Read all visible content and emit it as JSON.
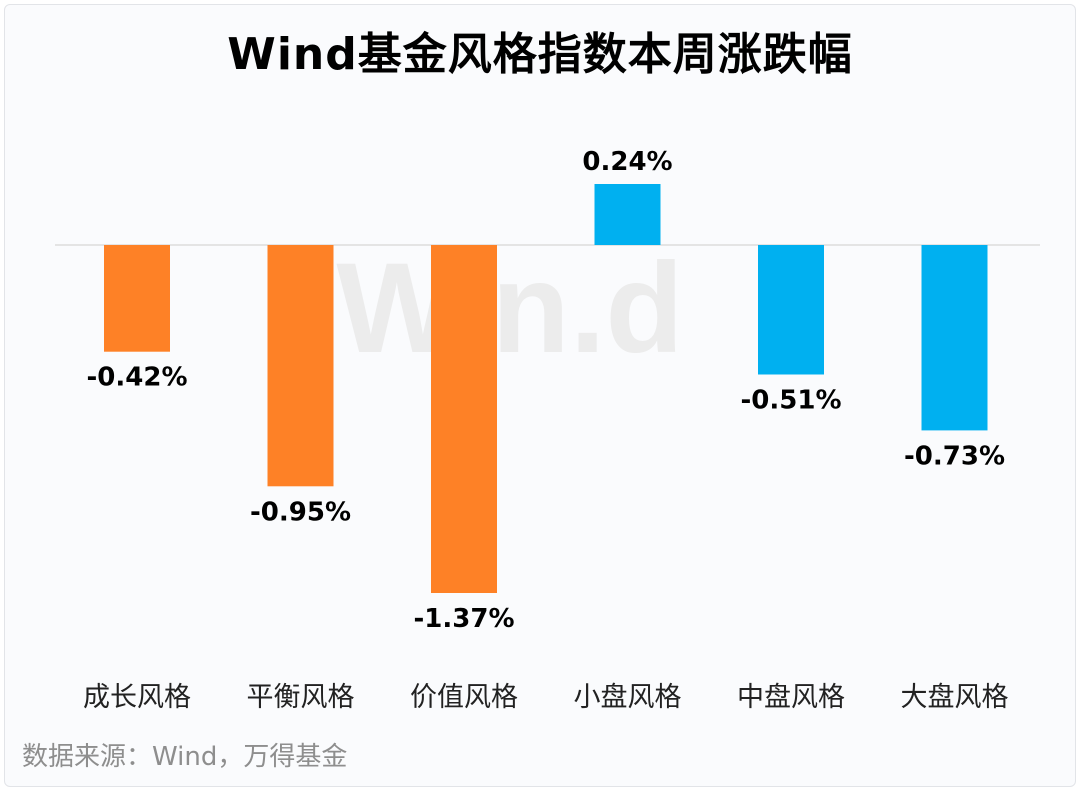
{
  "title": "Wind基金风格指数本周涨跌幅",
  "source": "数据来源：Wind，万得基金",
  "watermark": "Win.d",
  "chart_data": {
    "type": "bar",
    "title": "Wind基金风格指数本周涨跌幅",
    "categories": [
      "成长风格",
      "平衡风格",
      "价值风格",
      "小盘风格",
      "中盘风格",
      "大盘风格"
    ],
    "values": [
      -0.42,
      -0.95,
      -1.37,
      0.24,
      -0.51,
      -0.73
    ],
    "labels": [
      "-0.42%",
      "-0.95%",
      "-1.37%",
      "0.24%",
      "-0.51%",
      "-0.73%"
    ],
    "colors": [
      "#fe8126",
      "#fe8126",
      "#fe8126",
      "#00b0f0",
      "#00b0f0",
      "#00b0f0"
    ],
    "unit": "%",
    "ylim": [
      -1.5,
      0.5
    ],
    "grid": false,
    "legend": "none"
  }
}
